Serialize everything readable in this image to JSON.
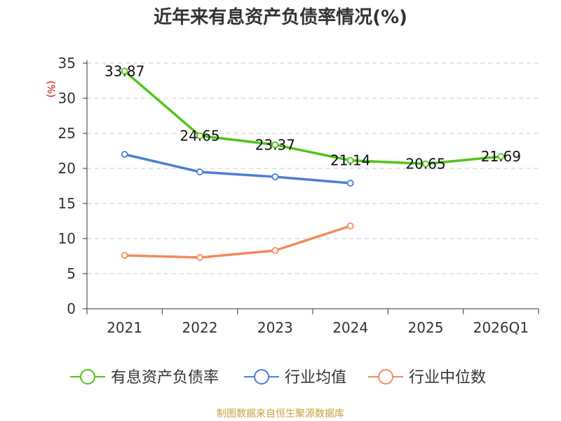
{
  "chart_data": {
    "type": "line",
    "title": "近年来有息资产负债率情况(%)",
    "ylabel": "(%)",
    "categories": [
      "2021",
      "2022",
      "2023",
      "2024",
      "2025",
      "2026Q1"
    ],
    "ylim": [
      0,
      35
    ],
    "yticks": [
      "0",
      "5",
      "10",
      "15",
      "20",
      "25",
      "30",
      "35"
    ],
    "grid": true,
    "legend_position": "bottom",
    "series": [
      {
        "name": "有息资产负债率",
        "color": "#52c41a",
        "values": [
          33.87,
          24.65,
          23.37,
          21.14,
          20.65,
          21.69
        ],
        "labels": [
          "33.87",
          "24.65",
          "23.37",
          "21.14",
          "20.65",
          "21.69"
        ]
      },
      {
        "name": "行业均值",
        "color": "#4a7fd4",
        "values": [
          22.0,
          19.5,
          18.8,
          17.9,
          null,
          null
        ]
      },
      {
        "name": "行业中位数",
        "color": "#f5895a",
        "values": [
          7.6,
          7.3,
          8.3,
          11.8,
          null,
          null
        ]
      }
    ],
    "source": "制图数据来自恒生聚源数据库"
  }
}
